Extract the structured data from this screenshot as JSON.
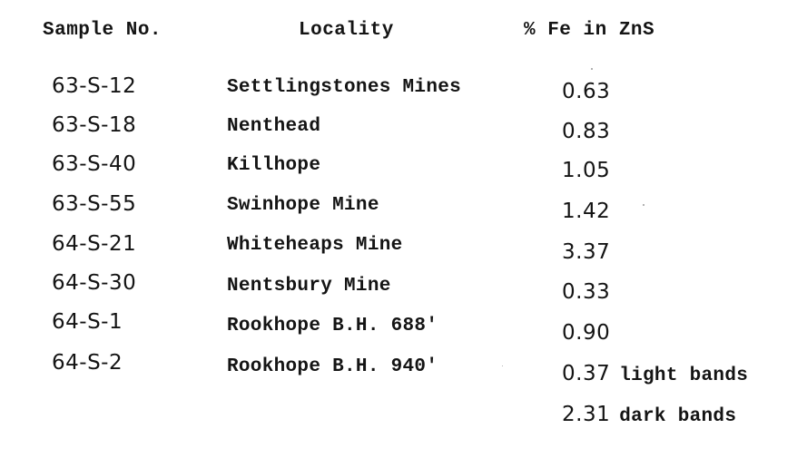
{
  "table": {
    "headers": {
      "sample": "Sample No.",
      "locality": "Locality",
      "fe": "% Fe in ZnS"
    },
    "rows": [
      {
        "sample": "63-S-12",
        "locality": "Settlingstones Mines",
        "fe": "0.63",
        "note": ""
      },
      {
        "sample": "63-S-18",
        "locality": "Nenthead",
        "fe": "0.83",
        "note": ""
      },
      {
        "sample": "63-S-40",
        "locality": "Killhope",
        "fe": "1.05",
        "note": ""
      },
      {
        "sample": "63-S-55",
        "locality": "Swinhope Mine",
        "fe": "1.42",
        "note": ""
      },
      {
        "sample": "64-S-21",
        "locality": "Whiteheaps Mine",
        "fe": "3.37",
        "note": ""
      },
      {
        "sample": "64-S-30",
        "locality": "Nentsbury Mine",
        "fe": "0.33",
        "note": ""
      },
      {
        "sample": "64-S-1",
        "locality": "Rookhope B.H. 688'",
        "fe": "0.90",
        "note": ""
      },
      {
        "sample": "64-S-2",
        "locality": "Rookhope B.H. 940'",
        "fe": "0.37",
        "note": "light bands"
      },
      {
        "sample": "",
        "locality": "",
        "fe": "2.31",
        "note": "dark bands"
      }
    ]
  }
}
